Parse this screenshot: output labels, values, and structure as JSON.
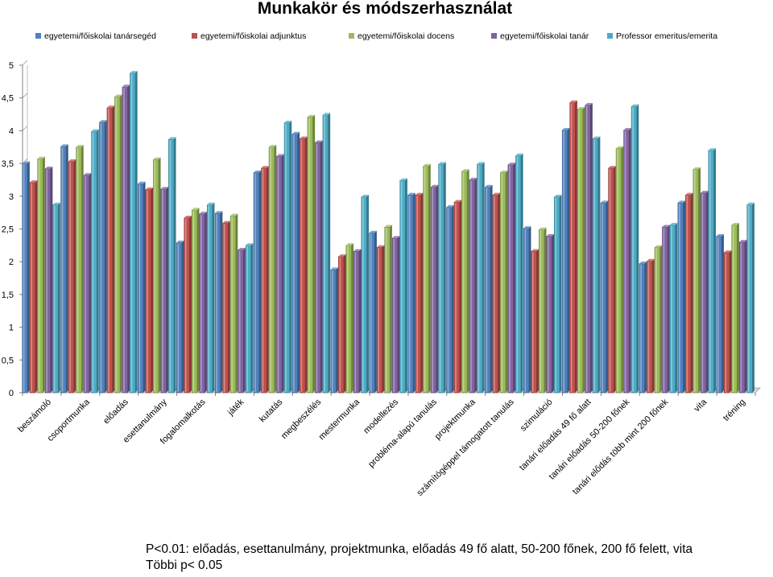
{
  "chart_data": {
    "type": "bar",
    "title": "Munkakör és módszerhasználat",
    "xlabel": "",
    "ylabel": "",
    "ylim": [
      0,
      5
    ],
    "yticks": [
      "0",
      "0,5",
      "1",
      "1,5",
      "2",
      "2,5",
      "3",
      "3,5",
      "4",
      "4,5",
      "5"
    ],
    "grid": false,
    "legend_position": "top",
    "categories": [
      "beszámoló",
      "csoportmunka",
      "előadás",
      "esettanulmány",
      "fogalomalkotás",
      "játék",
      "kutatás",
      "megbeszélés",
      "mestermunka",
      "modellezés",
      "probléma-alapú tanulás",
      "projektmunka",
      "számítógéppel támogatott tanulás",
      "szimuláció",
      "tanári előadás 49 fő alatt",
      "tanári előadás 50-200 főnek",
      "tanári elődás több mint 200 főnek",
      "vita",
      "tréning"
    ],
    "series": [
      {
        "name": "egyetemi/főiskolai tanársegéd",
        "color": "#4F81BD",
        "values": [
          3.5,
          3.76,
          4.13,
          3.19,
          2.29,
          2.74,
          3.36,
          3.95,
          1.88,
          2.44,
          3.02,
          2.83,
          3.14,
          2.51,
          4.01,
          2.9,
          1.97,
          2.9,
          2.39
        ]
      },
      {
        "name": "egyetemi/főiskolai adjunktus",
        "color": "#C0504D",
        "values": [
          3.21,
          3.53,
          4.35,
          3.1,
          2.67,
          2.59,
          3.43,
          3.88,
          2.08,
          2.22,
          3.02,
          2.91,
          3.02,
          2.16,
          4.43,
          3.43,
          2.01,
          3.02,
          2.14
        ]
      },
      {
        "name": "egyetemi/főiskolai docens",
        "color": "#9BBB59",
        "values": [
          3.57,
          3.75,
          4.52,
          3.56,
          2.79,
          2.7,
          3.75,
          4.21,
          2.25,
          2.53,
          3.46,
          3.38,
          3.36,
          2.49,
          4.33,
          3.73,
          2.22,
          3.41,
          2.56
        ]
      },
      {
        "name": "egyetemi/főiskolai tanár",
        "color": "#8064A2",
        "values": [
          3.42,
          3.32,
          4.67,
          3.11,
          2.73,
          2.18,
          3.61,
          3.82,
          2.16,
          2.36,
          3.14,
          3.25,
          3.48,
          2.39,
          4.39,
          4.01,
          2.53,
          3.05,
          2.3
        ]
      },
      {
        "name": "Professor emeritus/emerita",
        "color": "#4BACC6",
        "values": [
          2.87,
          3.99,
          4.88,
          3.87,
          2.87,
          2.25,
          4.12,
          4.24,
          2.99,
          3.24,
          3.49,
          3.49,
          3.62,
          2.99,
          3.88,
          4.37,
          2.56,
          3.7,
          2.87
        ]
      }
    ]
  },
  "footnote": {
    "line1": "P<0.01: előadás, esettanulmány, projektmunka, előadás 49 fő alatt, 50-200 főnek, 200 fő felett, vita",
    "line2": "Többi p< 0.05"
  }
}
